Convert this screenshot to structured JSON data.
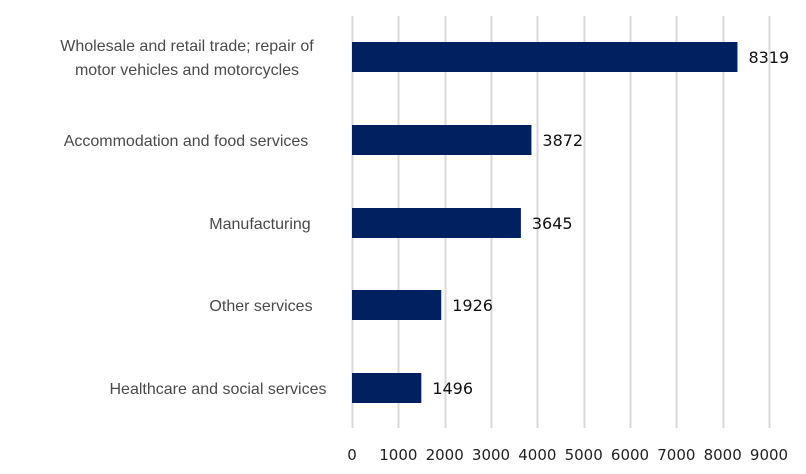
{
  "chart_data": {
    "type": "bar",
    "orientation": "horizontal",
    "categories": [
      [
        "Wholesale and retail trade; repair of",
        "motor vehicles and motorcycles"
      ],
      [
        "Accommodation and food services"
      ],
      [
        "Manufacturing"
      ],
      [
        "Other services"
      ],
      [
        "Healthcare and social services"
      ]
    ],
    "values": [
      8319,
      3872,
      3645,
      1926,
      1496
    ],
    "value_labels": [
      "8319",
      "3872",
      "3645",
      "1926",
      "1496"
    ],
    "xlim": [
      0,
      9000
    ],
    "x_ticks": [
      0,
      1000,
      2000,
      3000,
      4000,
      5000,
      6000,
      7000,
      8000,
      9000
    ],
    "x_tick_labels": [
      "0",
      "1000",
      "2000",
      "3000",
      "4000",
      "5000",
      "6000",
      "7000",
      "8000",
      "9000"
    ],
    "grid": "vertical",
    "legend": "none",
    "title": "",
    "xlabel": "",
    "ylabel": "",
    "colors": {
      "bar": "#002060",
      "grid": "#d9d9d9",
      "category_text": "#4a4a4a",
      "value_text": "#111111"
    }
  }
}
